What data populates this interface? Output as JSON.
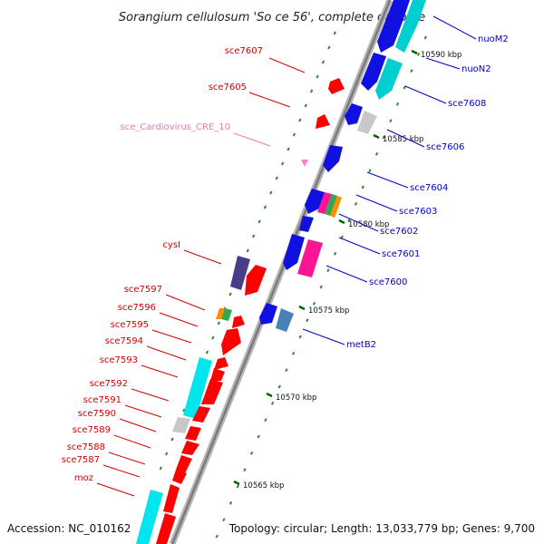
{
  "title": "Sorangium cellulosum 'So ce 56', complete genome",
  "footer": {
    "accession": "Accession: NC_010162",
    "topology": "Topology: circular; Length: 13,033,779 bp; Genes: 9,700"
  },
  "colors": {
    "left_label": "#d40000",
    "right_label": "#0000cc",
    "pink_label": "#e87ab8",
    "backbone": "#8c8c8c",
    "tick": "#2e8b2e",
    "kbp_tick": "#006400"
  },
  "kbp_marks": [
    {
      "label": "10590 kbp",
      "kbp": 10590
    },
    {
      "label": "10585 kbp",
      "kbp": 10585
    },
    {
      "label": "10580 kbp",
      "kbp": 10580
    },
    {
      "label": "10575 kbp",
      "kbp": 10575
    },
    {
      "label": "10570 kbp",
      "kbp": 10570
    },
    {
      "label": "10565 kbp",
      "kbp": 10565
    }
  ],
  "genes_left": [
    {
      "label": "sce7607"
    },
    {
      "label": "sce7605"
    },
    {
      "label": "sce_Cardiovirus_CRE_10",
      "pink": true
    },
    {
      "label": "cysI"
    },
    {
      "label": "sce7597"
    },
    {
      "label": "sce7596"
    },
    {
      "label": "sce7595"
    },
    {
      "label": "sce7594"
    },
    {
      "label": "sce7593"
    },
    {
      "label": "sce7592"
    },
    {
      "label": "sce7591"
    },
    {
      "label": "sce7590"
    },
    {
      "label": "sce7589"
    },
    {
      "label": "sce7588"
    },
    {
      "label": "sce7587"
    },
    {
      "label": "moz"
    }
  ],
  "genes_right": [
    {
      "label": "nuoM2"
    },
    {
      "label": "nuoN2"
    },
    {
      "label": "sce7608"
    },
    {
      "label": "sce7606"
    },
    {
      "label": "sce7604"
    },
    {
      "label": "sce7603"
    },
    {
      "label": "sce7602"
    },
    {
      "label": "sce7601"
    },
    {
      "label": "sce7600"
    },
    {
      "label": "metB2"
    }
  ]
}
